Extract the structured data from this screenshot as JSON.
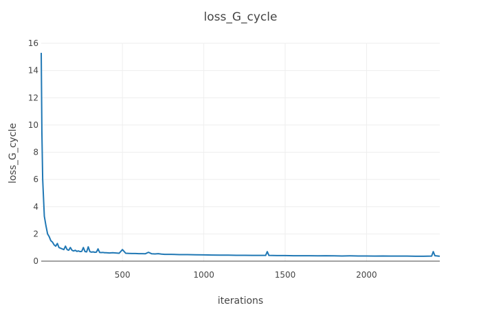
{
  "chart_data": {
    "type": "line",
    "title": "loss_G_cycle",
    "xlabel": "iterations",
    "ylabel": "loss_G_cycle",
    "xlim": [
      1,
      2450
    ],
    "ylim": [
      0,
      16
    ],
    "x_ticks": [
      500,
      1000,
      1500,
      2000
    ],
    "y_ticks": [
      0,
      2,
      4,
      6,
      8,
      10,
      12,
      14,
      16
    ],
    "grid": true,
    "legend": "none",
    "series": [
      {
        "color": "#1f77b4",
        "x": [
          1,
          5,
          10,
          20,
          30,
          40,
          50,
          60,
          70,
          80,
          90,
          100,
          110,
          120,
          130,
          140,
          150,
          160,
          170,
          180,
          190,
          200,
          210,
          220,
          230,
          240,
          250,
          260,
          270,
          280,
          290,
          300,
          310,
          320,
          330,
          340,
          350,
          360,
          370,
          380,
          390,
          400,
          420,
          440,
          460,
          480,
          500,
          520,
          540,
          560,
          580,
          600,
          620,
          640,
          660,
          680,
          700,
          720,
          740,
          760,
          780,
          800,
          850,
          900,
          950,
          1000,
          1050,
          1100,
          1150,
          1200,
          1250,
          1300,
          1350,
          1380,
          1390,
          1400,
          1450,
          1500,
          1550,
          1600,
          1650,
          1700,
          1750,
          1800,
          1850,
          1900,
          1950,
          2000,
          2050,
          2100,
          2150,
          2200,
          2250,
          2300,
          2350,
          2400,
          2410,
          2420,
          2450
        ],
        "values": [
          15.3,
          9.5,
          6.0,
          3.3,
          2.6,
          2.0,
          1.8,
          1.5,
          1.4,
          1.2,
          1.1,
          1.3,
          1.0,
          0.95,
          0.9,
          0.85,
          1.1,
          0.85,
          0.8,
          1.0,
          0.8,
          0.75,
          0.8,
          0.72,
          0.75,
          0.7,
          0.72,
          1.0,
          0.7,
          0.68,
          1.05,
          0.7,
          0.66,
          0.68,
          0.65,
          0.66,
          0.9,
          0.64,
          0.63,
          0.64,
          0.62,
          0.62,
          0.6,
          0.62,
          0.6,
          0.58,
          0.85,
          0.58,
          0.57,
          0.56,
          0.56,
          0.55,
          0.55,
          0.54,
          0.65,
          0.54,
          0.53,
          0.55,
          0.52,
          0.5,
          0.5,
          0.5,
          0.48,
          0.48,
          0.47,
          0.46,
          0.45,
          0.44,
          0.44,
          0.43,
          0.43,
          0.42,
          0.42,
          0.42,
          0.7,
          0.42,
          0.41,
          0.41,
          0.4,
          0.4,
          0.4,
          0.39,
          0.4,
          0.39,
          0.38,
          0.39,
          0.38,
          0.38,
          0.37,
          0.38,
          0.37,
          0.37,
          0.37,
          0.36,
          0.36,
          0.37,
          0.7,
          0.4,
          0.36
        ]
      }
    ]
  }
}
